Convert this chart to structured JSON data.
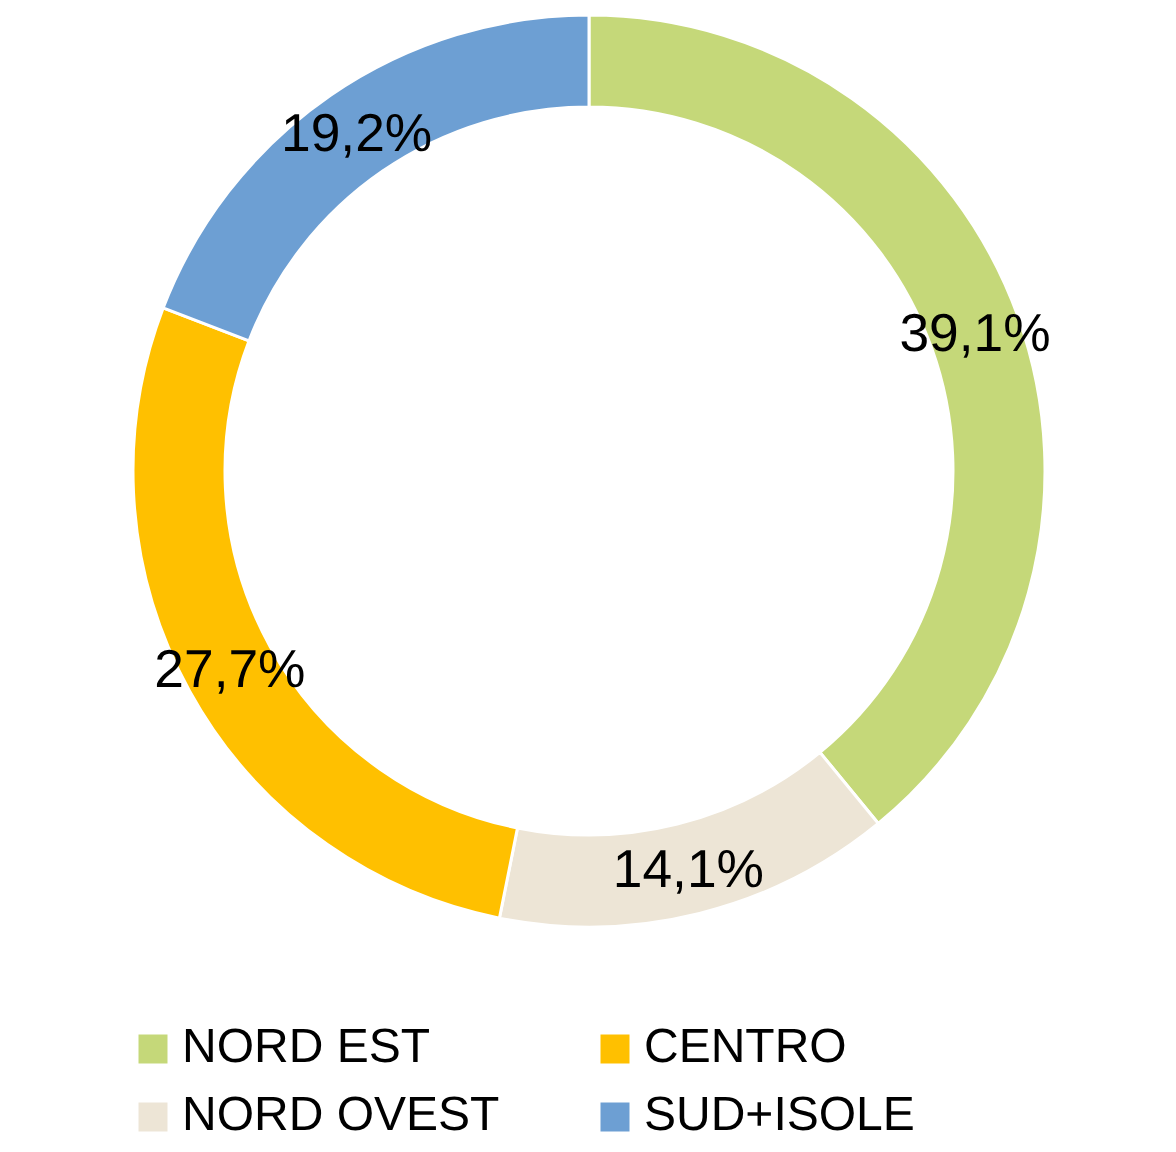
{
  "chart_data": {
    "type": "donut",
    "categories": [
      "NORD EST",
      "NORD OVEST",
      "CENTRO",
      "SUD+ISOLE"
    ],
    "values": [
      39.1,
      14.1,
      27.7,
      19.2
    ],
    "colors": [
      "#c5d879",
      "#ede5d6",
      "#ffc000",
      "#6d9fd3"
    ],
    "value_labels": [
      "39,1%",
      "14,1%",
      "27,7%",
      "19,2%"
    ],
    "legend": "bottom"
  }
}
